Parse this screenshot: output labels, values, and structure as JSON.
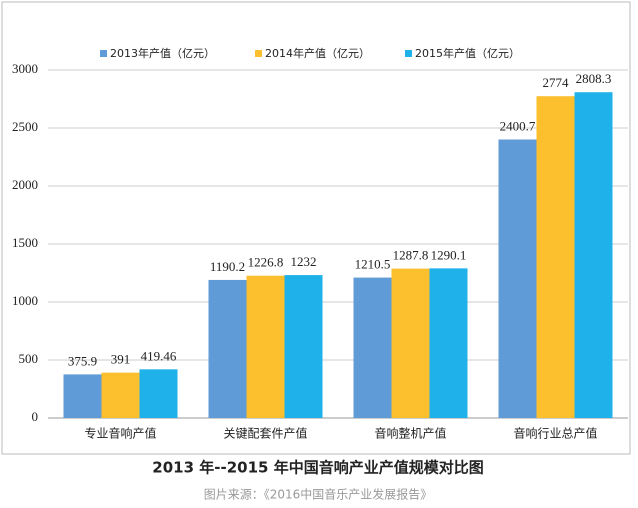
{
  "chart_data": {
    "type": "bar",
    "title": "2013 年--2015 年中国音响产业产值规模对比图",
    "source": "图片来源：《2016中国音乐产业发展报告》",
    "categories": [
      "专业音响产值",
      "关键配套件产值",
      "音响整机产值",
      "音响行业总产值"
    ],
    "series": [
      {
        "name": "2013年产值（亿元）",
        "color": "#5f9bd6",
        "values": [
          375.9,
          1190.2,
          1210.5,
          2400.7
        ]
      },
      {
        "name": "2014年产值（亿元）",
        "color": "#fcbf2e",
        "values": [
          391,
          1226.8,
          1287.8,
          2774
        ]
      },
      {
        "name": "2015年产值（亿元）",
        "color": "#1fb2ea",
        "values": [
          419.46,
          1232,
          1290.1,
          2808.3
        ]
      }
    ],
    "ylim": [
      0,
      3000
    ],
    "yticks": [
      0,
      500,
      1000,
      1500,
      2000,
      2500,
      3000
    ],
    "grid": true,
    "legend": "top"
  }
}
